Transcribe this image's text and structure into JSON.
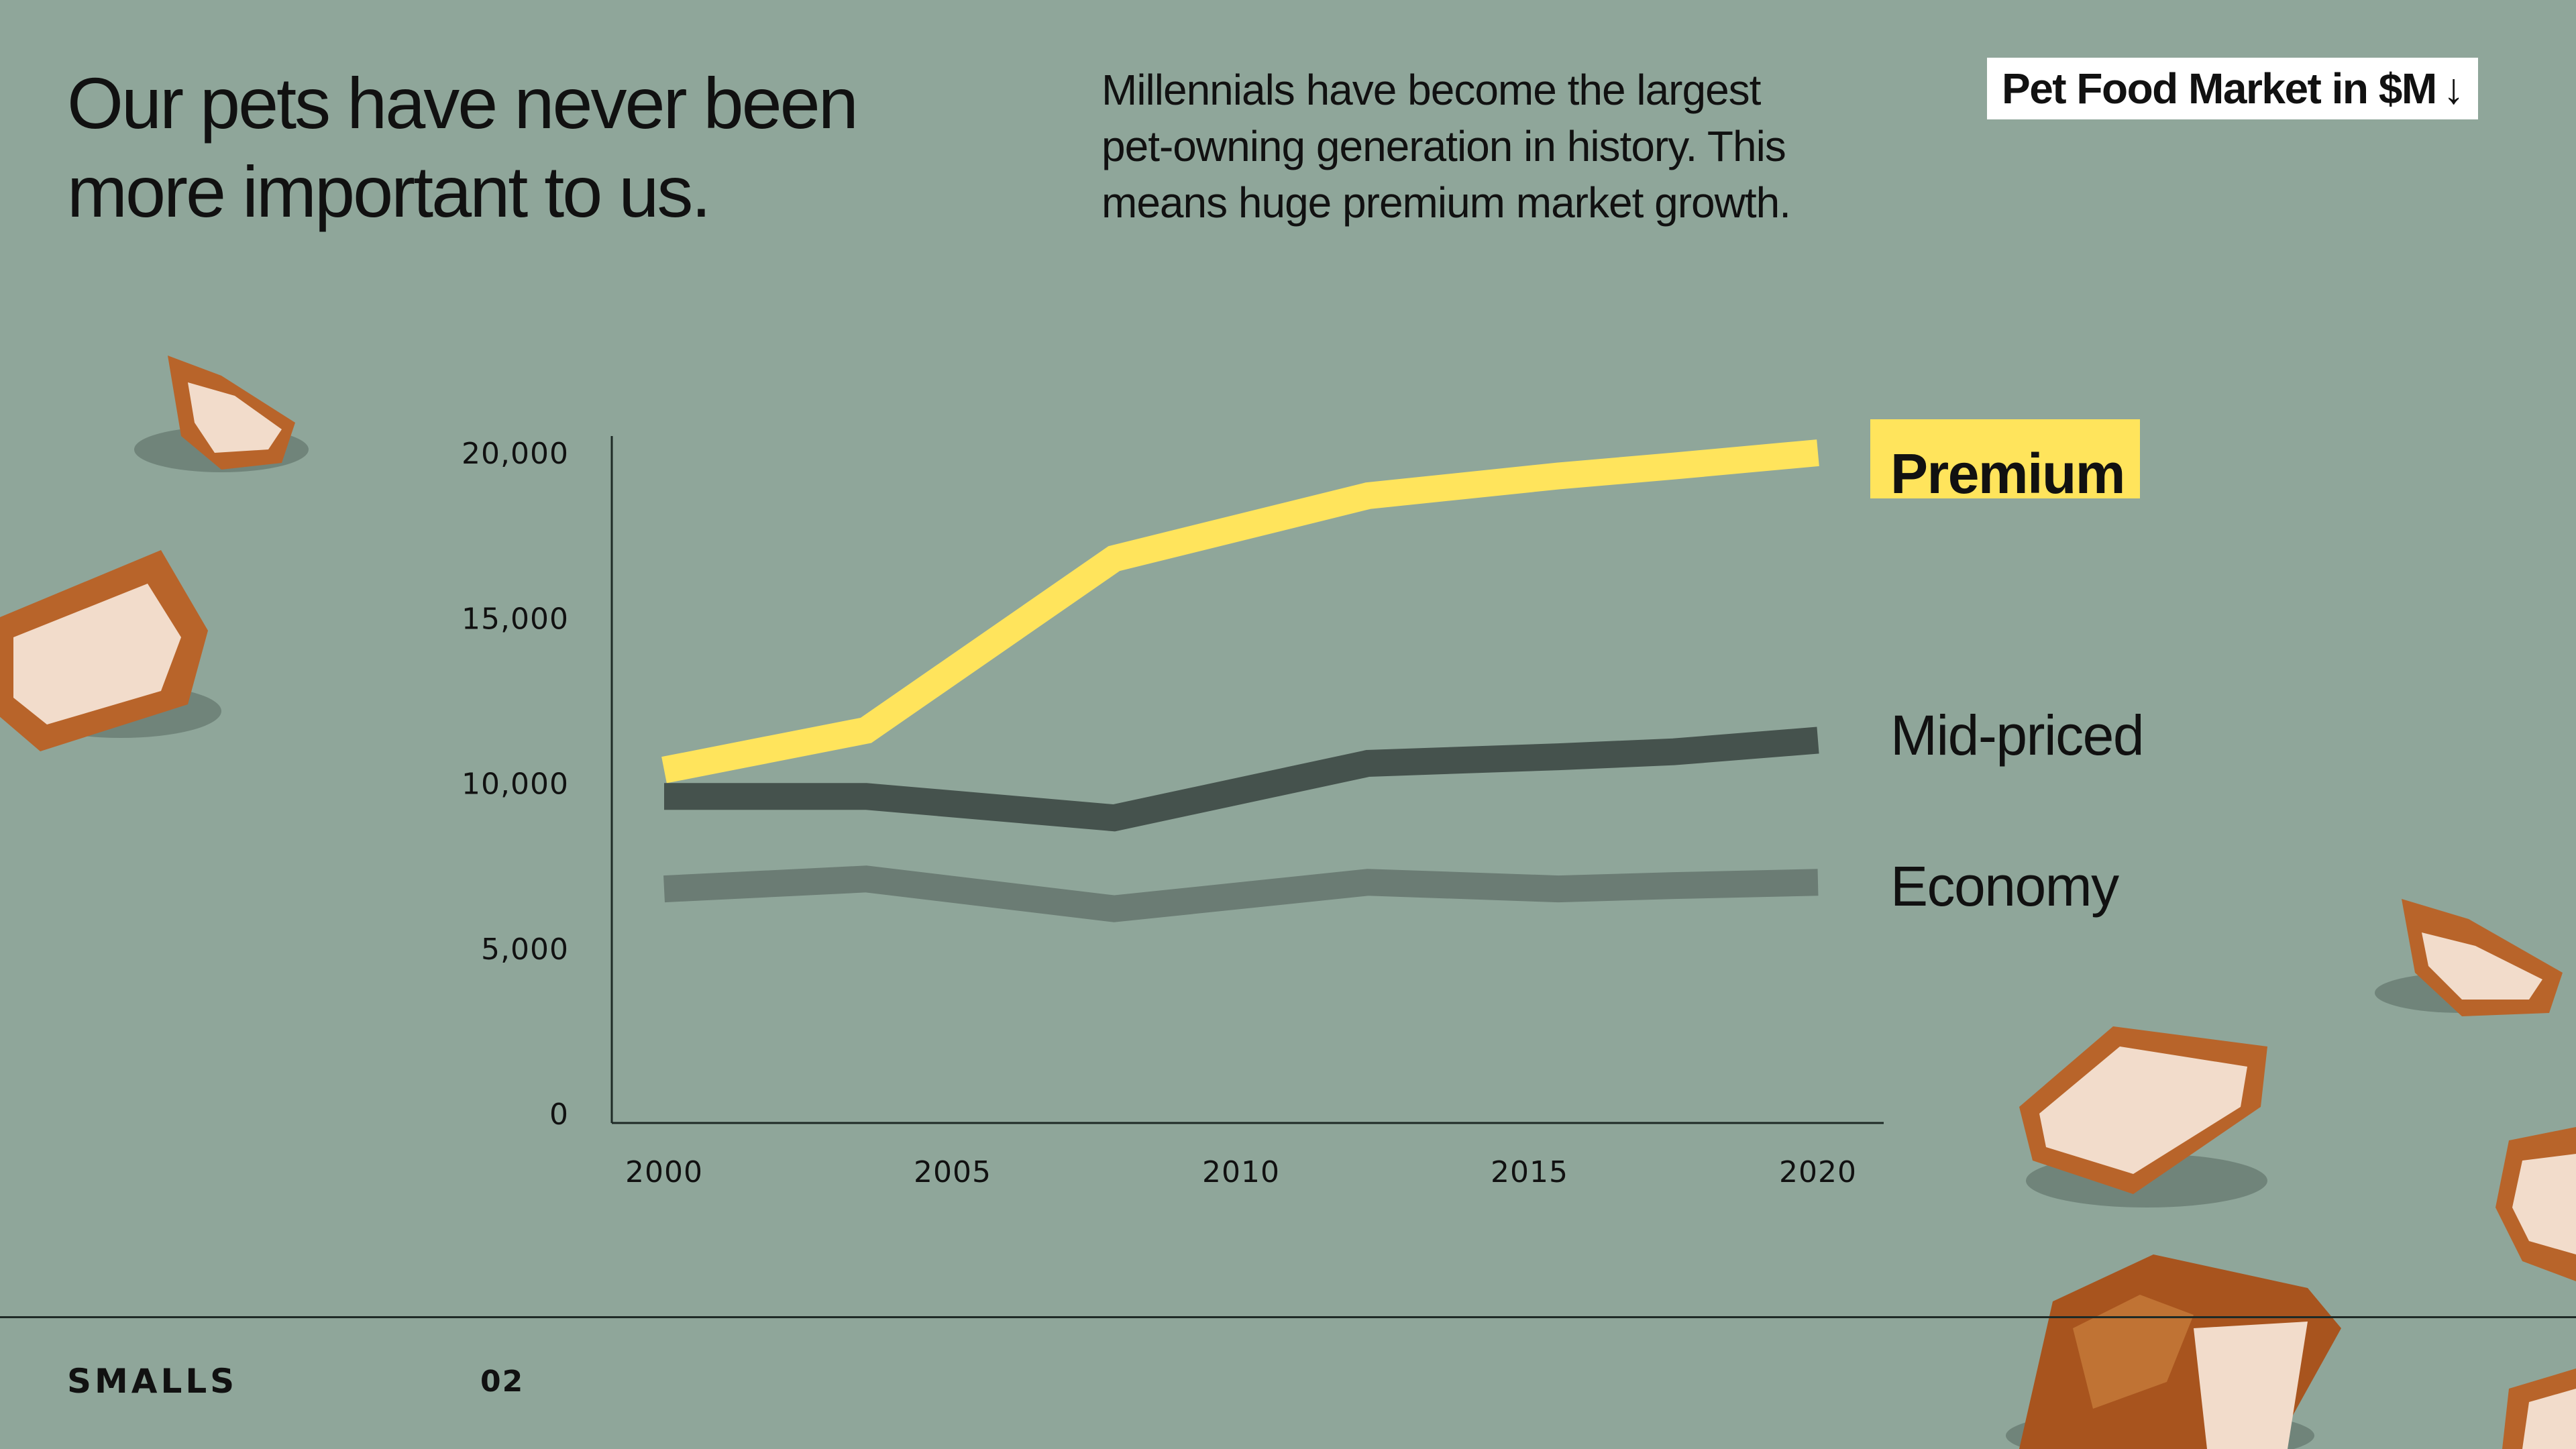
{
  "header": {
    "headline_line1": "Our pets have never been",
    "headline_line2": "more important to us.",
    "subtext_line1": "Millennials have become the largest",
    "subtext_line2": "pet-owning generation in history. This",
    "subtext_line3": "means huge premium market growth.",
    "badge_label": "Pet Food Market in $M",
    "badge_icon": "arrow-down-icon"
  },
  "chart_data": {
    "type": "line",
    "title": "Pet Food Market in $M",
    "x": [
      2000,
      2003.5,
      2007.8,
      2012.2,
      2015.5,
      2017.5,
      2020
    ],
    "xticks": [
      "2000",
      "2005",
      "2010",
      "2015",
      "2020"
    ],
    "yticks": [
      "0",
      "5,000",
      "10,000",
      "15,000",
      "20,000"
    ],
    "xlim": [
      2000,
      2020
    ],
    "ylim": [
      0,
      20000
    ],
    "grid": false,
    "legend": "inline-right",
    "series": [
      {
        "name": "Premium",
        "color": "#ffe45c",
        "values": [
          10400,
          11600,
          16800,
          18700,
          19300,
          19600,
          20000
        ]
      },
      {
        "name": "Mid-priced",
        "color": "#45524d",
        "values": [
          9600,
          9600,
          8950,
          10600,
          10800,
          10950,
          11300
        ]
      },
      {
        "name": "Economy",
        "color": "#6b7c74",
        "values": [
          6800,
          7100,
          6200,
          7000,
          6800,
          6900,
          7000
        ]
      }
    ]
  },
  "footer": {
    "brand": "SMALLS",
    "page_number": "02"
  },
  "decor": {
    "image_subject": "chicken-pieces",
    "meat_color": "#f2dccb",
    "crust_color": "#b8642a"
  }
}
